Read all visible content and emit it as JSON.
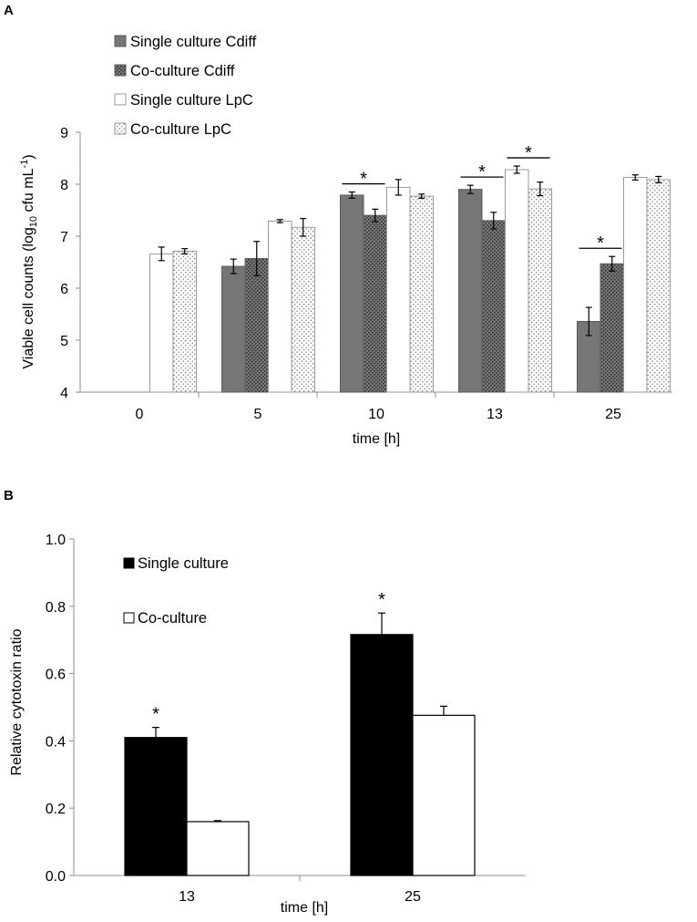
{
  "chart_data": [
    {
      "type": "bar",
      "panel_label": "A",
      "xlabel": "time [h]",
      "ylabel_parts": [
        "Viable cell counts (log",
        "10",
        " cfu mL",
        "-1",
        ")"
      ],
      "ylim": [
        4,
        9
      ],
      "yticks": [
        "4",
        "5",
        "6",
        "7",
        "8",
        "9"
      ],
      "categories": [
        "0",
        "5",
        "10",
        "13",
        "25"
      ],
      "series": [
        {
          "name": "Single culture Cdiff",
          "style": "solid-gray",
          "values": [
            null,
            6.42,
            7.79,
            7.9,
            5.36
          ],
          "errors": [
            null,
            0.14,
            0.06,
            0.08,
            0.27
          ]
        },
        {
          "name": "Co-culture Cdiff",
          "style": "dark-dotted",
          "values": [
            null,
            6.57,
            7.4,
            7.3,
            6.47
          ],
          "errors": [
            null,
            0.33,
            0.12,
            0.16,
            0.14
          ]
        },
        {
          "name": "Single culture LpC",
          "style": "white",
          "values": [
            6.66,
            7.29,
            7.94,
            8.28,
            8.13
          ],
          "errors": [
            0.13,
            0.03,
            0.15,
            0.07,
            0.05
          ]
        },
        {
          "name": "Co-culture LpC",
          "style": "light-dotted",
          "values": [
            6.71,
            7.17,
            7.77,
            7.91,
            8.09
          ],
          "errors": [
            0.05,
            0.17,
            0.04,
            0.13,
            0.06
          ]
        }
      ],
      "significance": [
        {
          "category": "10",
          "between": [
            0,
            1
          ],
          "label": "*"
        },
        {
          "category": "13",
          "between": [
            0,
            1
          ],
          "label": "*"
        },
        {
          "category": "13",
          "between": [
            2,
            3
          ],
          "label": "*"
        },
        {
          "category": "25",
          "between": [
            0,
            1
          ],
          "label": "*"
        }
      ],
      "legend_position": "top-left"
    },
    {
      "type": "bar",
      "panel_label": "B",
      "xlabel": "time [h]",
      "ylabel": "Relative cytotoxin ratio",
      "ylim": [
        0,
        1
      ],
      "yticks": [
        "0.0",
        "0.2",
        "0.4",
        "0.6",
        "0.8",
        "1.0"
      ],
      "categories": [
        "13",
        "25"
      ],
      "series": [
        {
          "name": "Single culture",
          "style": "black",
          "values": [
            0.41,
            0.716
          ],
          "errors": [
            0.03,
            0.064
          ]
        },
        {
          "name": "Co-culture",
          "style": "white",
          "values": [
            0.16,
            0.476
          ],
          "errors": [
            0.003,
            0.027
          ]
        }
      ],
      "significance": [
        {
          "category": "13",
          "series": 0,
          "label": "*"
        },
        {
          "category": "25",
          "series": 0,
          "label": "*"
        }
      ],
      "legend_position": "top-left"
    }
  ]
}
